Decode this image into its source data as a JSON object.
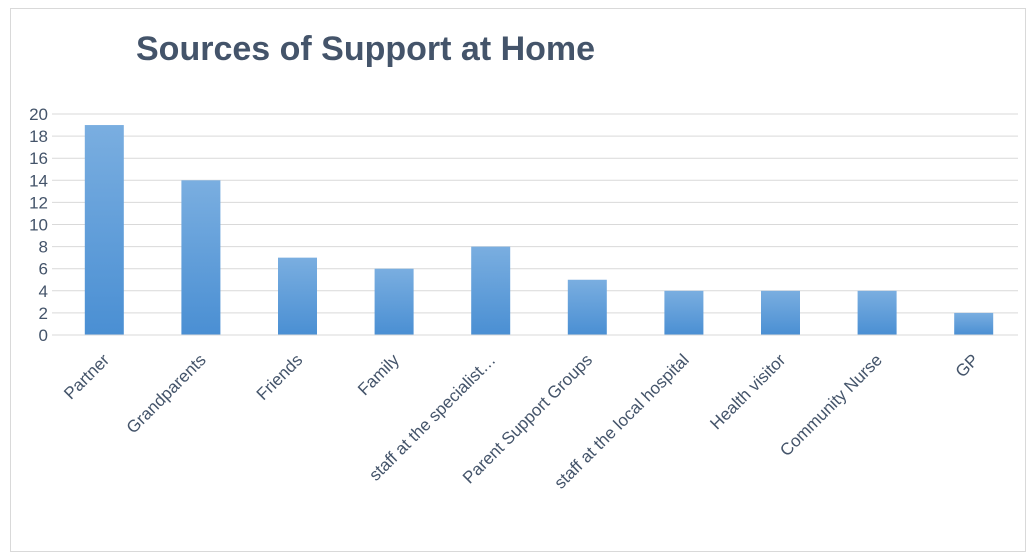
{
  "chart_data": {
    "type": "bar",
    "title": "Sources of Support at Home",
    "xlabel": "",
    "ylabel": "",
    "categories": [
      "Partner",
      "Grandparents",
      "Friends",
      "Family",
      "staff at the specialist…",
      "Parent Support Groups",
      "staff at the local hospital",
      "Health visitor",
      "Community Nurse",
      "GP"
    ],
    "values": [
      19,
      14,
      7,
      6,
      8,
      5,
      4,
      4,
      4,
      2
    ],
    "ylim": [
      0,
      20
    ],
    "yticks": [
      0,
      2,
      4,
      6,
      8,
      10,
      12,
      14,
      16,
      18,
      20
    ],
    "grid": true,
    "legend": "none",
    "colors": {
      "bar_top": "#7aaee0",
      "bar_bottom": "#4a8fd3",
      "grid": "#d9d9d9",
      "axis": "#d9d9d9",
      "text": "#44546a",
      "title": "#44546a",
      "border": "#d9d9d9"
    }
  }
}
